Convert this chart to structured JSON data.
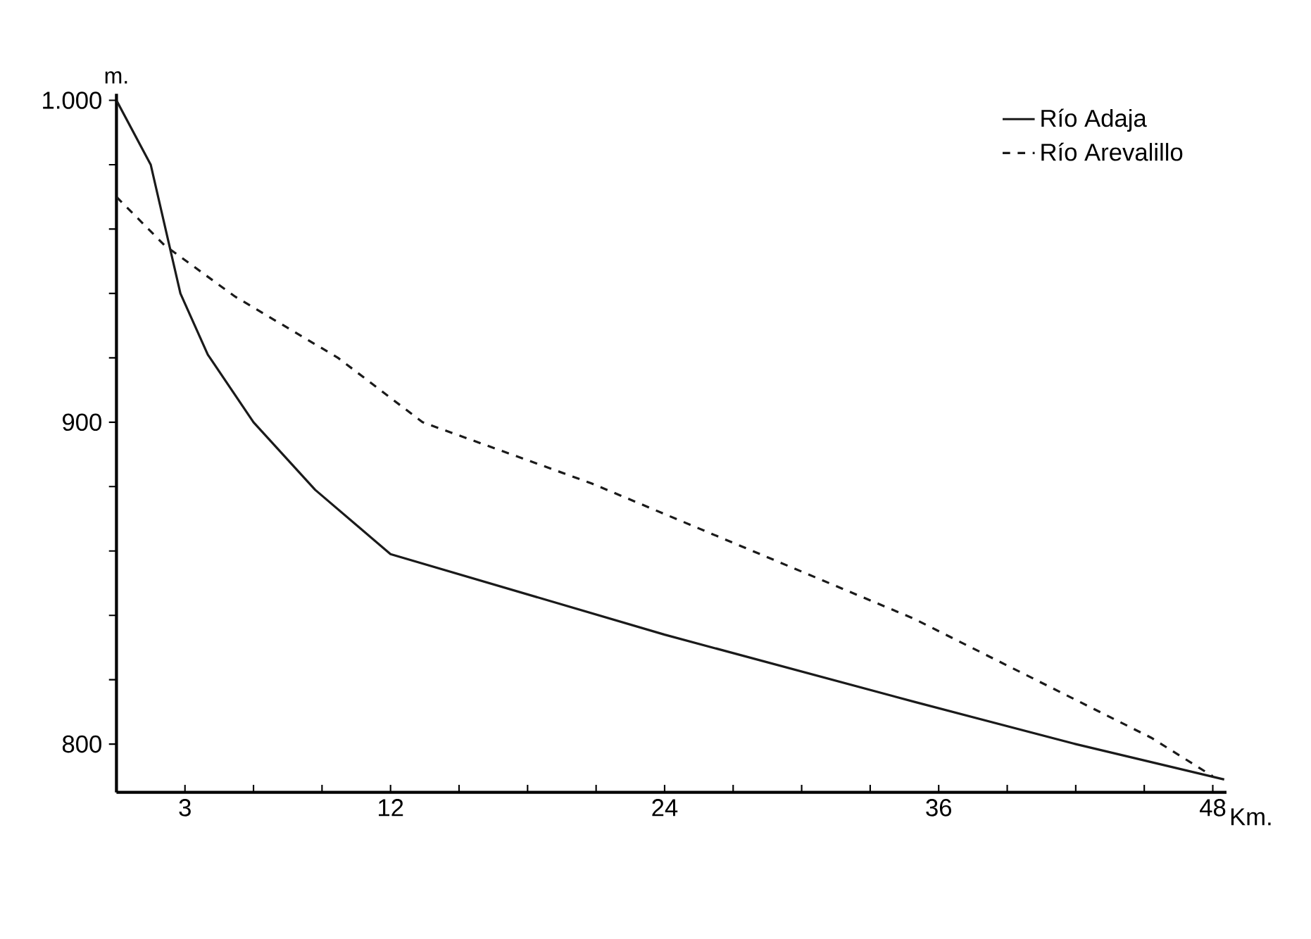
{
  "chart_data": {
    "type": "line",
    "xlabel": "Km.",
    "ylabel": "m.",
    "xlim": [
      0,
      48.6
    ],
    "ylim": [
      785,
      1002
    ],
    "xticks": [
      {
        "value": 3,
        "label": "3"
      },
      {
        "value": 6,
        "label": null
      },
      {
        "value": 9,
        "label": null
      },
      {
        "value": 12,
        "label": "12"
      },
      {
        "value": 15,
        "label": null
      },
      {
        "value": 18,
        "label": null
      },
      {
        "value": 21,
        "label": null
      },
      {
        "value": 24,
        "label": "24"
      },
      {
        "value": 27,
        "label": null
      },
      {
        "value": 30,
        "label": null
      },
      {
        "value": 33,
        "label": null
      },
      {
        "value": 36,
        "label": "36"
      },
      {
        "value": 39,
        "label": null
      },
      {
        "value": 42,
        "label": null
      },
      {
        "value": 45,
        "label": null
      },
      {
        "value": 48,
        "label": "48"
      }
    ],
    "yticks": [
      {
        "value": 800,
        "label": "800"
      },
      {
        "value": 820,
        "label": null
      },
      {
        "value": 840,
        "label": null
      },
      {
        "value": 860,
        "label": null
      },
      {
        "value": 880,
        "label": null
      },
      {
        "value": 900,
        "label": "900"
      },
      {
        "value": 920,
        "label": null
      },
      {
        "value": 940,
        "label": null
      },
      {
        "value": 960,
        "label": null
      },
      {
        "value": 980,
        "label": null
      },
      {
        "value": 1000,
        "label": "1.000"
      }
    ],
    "legend": "top right",
    "grid": false,
    "marker": "none",
    "series": [
      {
        "name": "Río Adaja",
        "color": "#1a1a1a",
        "line_style": "solid",
        "x": [
          0,
          1.5,
          2.8,
          4,
          6,
          8.7,
          12,
          24,
          35,
          42,
          48.5
        ],
        "values": [
          1000,
          980,
          940,
          921,
          900,
          879,
          859,
          834,
          813,
          800,
          789
        ]
      },
      {
        "name": "Río Arevalillo",
        "color": "#1a1a1a",
        "line_style": "dashed",
        "x": [
          0,
          2.1,
          5.2,
          9.7,
          13.4,
          20.8,
          34.9,
          45.3,
          48
        ],
        "values": [
          970,
          955,
          939,
          920,
          900,
          881,
          839,
          802,
          790
        ]
      }
    ]
  }
}
